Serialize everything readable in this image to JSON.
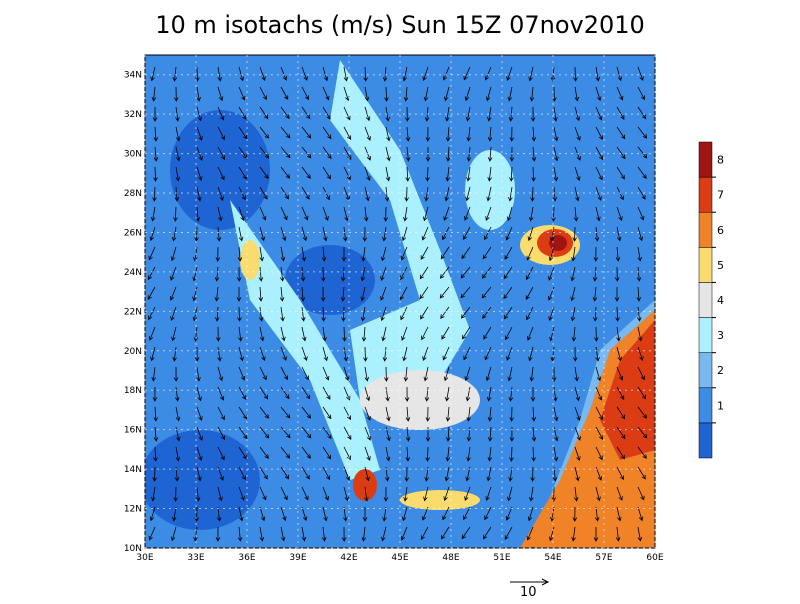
{
  "map": {
    "title": "10 m isotachs (m/s) Sun 15Z 07nov2010",
    "lat_ticks": [
      {
        "value": 10,
        "label": "10N"
      },
      {
        "value": 12,
        "label": "12N"
      },
      {
        "value": 14,
        "label": "14N"
      },
      {
        "value": 16,
        "label": "16N"
      },
      {
        "value": 18,
        "label": "18N"
      },
      {
        "value": 20,
        "label": "20N"
      },
      {
        "value": 22,
        "label": "22N"
      },
      {
        "value": 24,
        "label": "24N"
      },
      {
        "value": 26,
        "label": "26N"
      },
      {
        "value": 28,
        "label": "28N"
      },
      {
        "value": 30,
        "label": "30N"
      },
      {
        "value": 32,
        "label": "32N"
      },
      {
        "value": 34,
        "label": "34N"
      }
    ],
    "lon_ticks": [
      {
        "value": 30,
        "label": "30E"
      },
      {
        "value": 33,
        "label": "33E"
      },
      {
        "value": 36,
        "label": "36E"
      },
      {
        "value": 39,
        "label": "39E"
      },
      {
        "value": 42,
        "label": "42E"
      },
      {
        "value": 45,
        "label": "45E"
      },
      {
        "value": 48,
        "label": "48E"
      },
      {
        "value": 51,
        "label": "51E"
      },
      {
        "value": 54,
        "label": "54E"
      },
      {
        "value": 57,
        "label": "57E"
      },
      {
        "value": 60,
        "label": "60E"
      }
    ],
    "lat_range": [
      10,
      35
    ],
    "lon_range": [
      30,
      60
    ],
    "colorbar": {
      "ticks": [
        1,
        2,
        3,
        4,
        5,
        6,
        7,
        8
      ],
      "colors": [
        "#1e64d2",
        "#3c8ce6",
        "#78b9f0",
        "#aaf0ff",
        "#e6e6e6",
        "#fadc6e",
        "#f08228",
        "#dc3c14",
        "#a01414"
      ]
    },
    "reference_vector": "10"
  }
}
